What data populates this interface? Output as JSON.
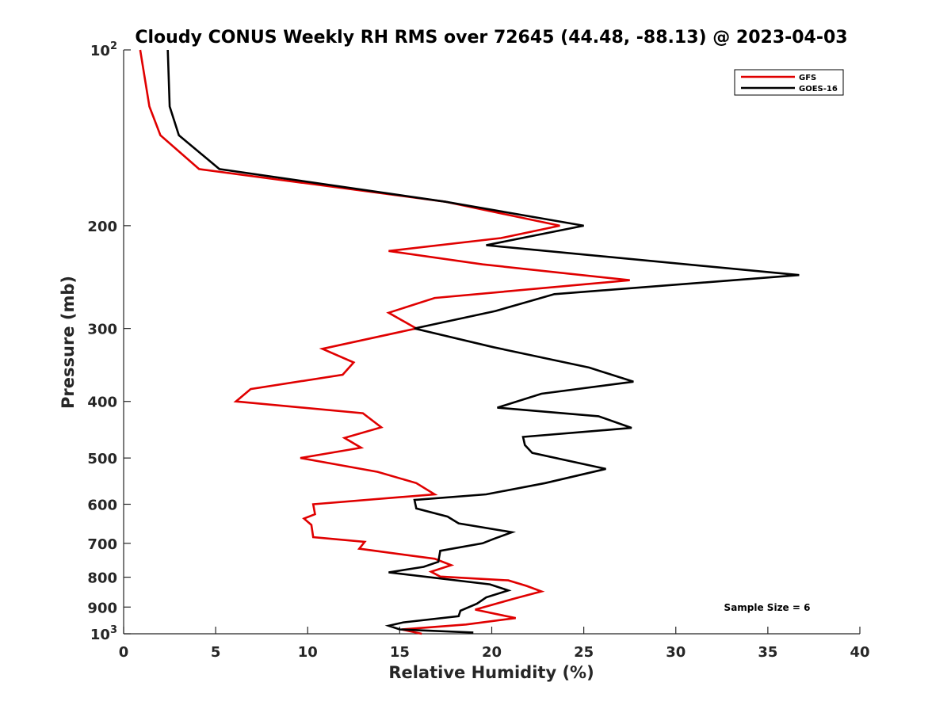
{
  "chart_data": {
    "type": "line",
    "title": "Cloudy CONUS Weekly RH RMS over 72645 (44.48, -88.13) @ 2023-04-03",
    "xlabel": "Relative Humidity (%)",
    "ylabel": "Pressure (mb)",
    "xlim": [
      0,
      40
    ],
    "ylim": [
      100,
      1000
    ],
    "y_scale": "log",
    "y_reversed": true,
    "grid": false,
    "legend_position": "top-right",
    "x_ticks": [
      "0",
      "5",
      "10",
      "15",
      "20",
      "25",
      "30",
      "35",
      "40"
    ],
    "y_ticks": [
      {
        "value": 100,
        "base": "10",
        "exp": "2"
      },
      {
        "value": 200,
        "label": "200"
      },
      {
        "value": 300,
        "label": "300"
      },
      {
        "value": 400,
        "label": "400"
      },
      {
        "value": 500,
        "label": "500"
      },
      {
        "value": 600,
        "label": "600"
      },
      {
        "value": 700,
        "label": "700"
      },
      {
        "value": 800,
        "label": "800"
      },
      {
        "value": 900,
        "label": "900"
      },
      {
        "value": 1000,
        "base": "10",
        "exp": "3"
      }
    ],
    "annotation": "Sample Size = 6",
    "series": [
      {
        "name": "GFS",
        "color": "#e00000",
        "points": [
          [
            0.9,
            100
          ],
          [
            1.4,
            125
          ],
          [
            2.0,
            140
          ],
          [
            4.1,
            160
          ],
          [
            17.5,
            182
          ],
          [
            23.7,
            200
          ],
          [
            20.5,
            210
          ],
          [
            14.4,
            221
          ],
          [
            19.5,
            233
          ],
          [
            27.5,
            248
          ],
          [
            16.9,
            266
          ],
          [
            14.4,
            282
          ],
          [
            15.9,
            300
          ],
          [
            10.8,
            325
          ],
          [
            12.5,
            343
          ],
          [
            11.9,
            360
          ],
          [
            6.9,
            381
          ],
          [
            6.1,
            400
          ],
          [
            13.0,
            419
          ],
          [
            14.0,
            443
          ],
          [
            12.0,
            462
          ],
          [
            12.9,
            480
          ],
          [
            9.6,
            500
          ],
          [
            13.8,
            528
          ],
          [
            15.9,
            552
          ],
          [
            16.9,
            577
          ],
          [
            10.3,
            600
          ],
          [
            10.4,
            624
          ],
          [
            9.8,
            635
          ],
          [
            10.2,
            651
          ],
          [
            10.3,
            683
          ],
          [
            13.1,
            696
          ],
          [
            12.8,
            715
          ],
          [
            16.9,
            744
          ],
          [
            17.8,
            763
          ],
          [
            16.7,
            783
          ],
          [
            17.2,
            798
          ],
          [
            20.9,
            810
          ],
          [
            21.9,
            828
          ],
          [
            22.7,
            846
          ],
          [
            21.3,
            869
          ],
          [
            19.1,
            909
          ],
          [
            21.3,
            940
          ],
          [
            18.6,
            964
          ],
          [
            15.1,
            983
          ],
          [
            16.2,
            1000
          ]
        ]
      },
      {
        "name": "GOES-16",
        "color": "#000000",
        "points": [
          [
            2.4,
            100
          ],
          [
            2.5,
            125
          ],
          [
            3.0,
            140
          ],
          [
            5.2,
            160
          ],
          [
            17.5,
            182
          ],
          [
            25.0,
            200
          ],
          [
            19.7,
            216
          ],
          [
            36.7,
            243
          ],
          [
            23.4,
            262
          ],
          [
            20.2,
            280
          ],
          [
            15.8,
            300
          ],
          [
            20.1,
            323
          ],
          [
            25.3,
            350
          ],
          [
            27.7,
            370
          ],
          [
            22.7,
            388
          ],
          [
            20.3,
            410
          ],
          [
            25.8,
            424
          ],
          [
            27.6,
            444
          ],
          [
            21.7,
            460
          ],
          [
            21.8,
            475
          ],
          [
            22.2,
            490
          ],
          [
            26.2,
            522
          ],
          [
            22.9,
            552
          ],
          [
            19.7,
            577
          ],
          [
            15.8,
            590
          ],
          [
            15.9,
            610
          ],
          [
            17.6,
            630
          ],
          [
            18.2,
            647
          ],
          [
            21.1,
            670
          ],
          [
            20.1,
            688
          ],
          [
            19.5,
            700
          ],
          [
            17.2,
            721
          ],
          [
            17.1,
            753
          ],
          [
            16.3,
            768
          ],
          [
            14.4,
            785
          ],
          [
            19.9,
            823
          ],
          [
            20.9,
            843
          ],
          [
            19.7,
            866
          ],
          [
            19.2,
            888
          ],
          [
            18.3,
            913
          ],
          [
            18.2,
            933
          ],
          [
            15.2,
            956
          ],
          [
            14.4,
            969
          ],
          [
            15.0,
            983
          ],
          [
            19.0,
            995
          ]
        ]
      }
    ]
  }
}
